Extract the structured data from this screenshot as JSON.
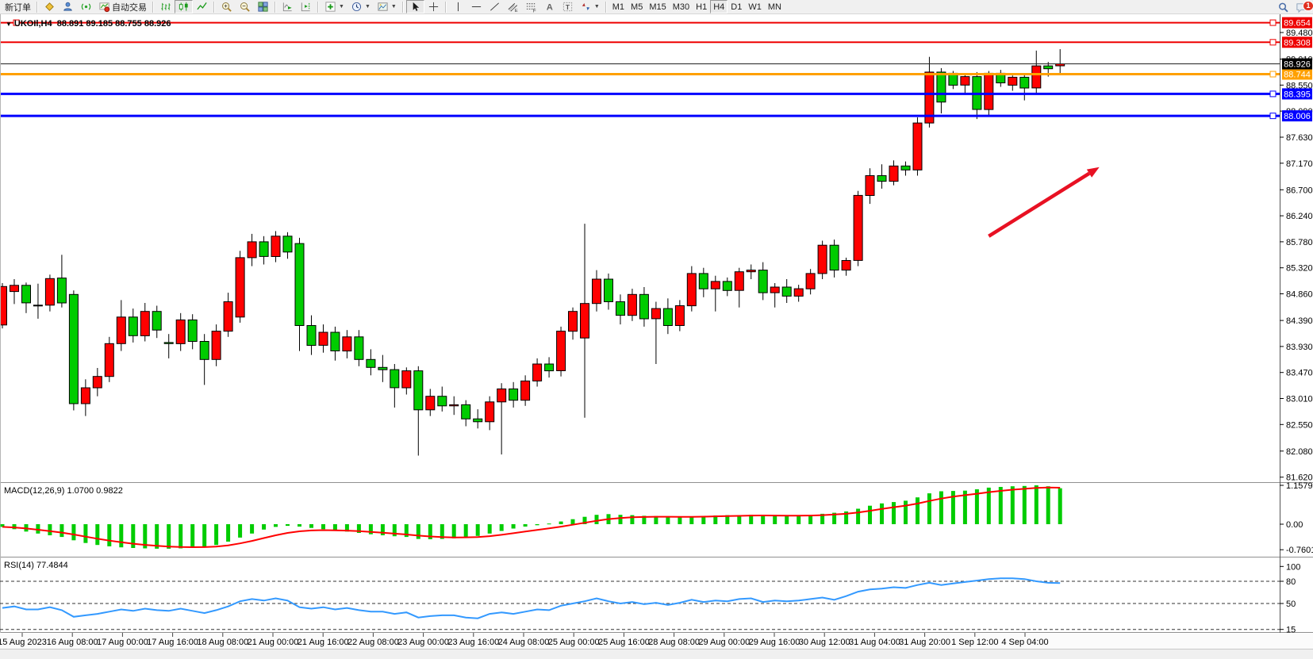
{
  "toolbar": {
    "groups": [
      [
        {
          "name": "new-order-button",
          "label": "新订单"
        }
      ],
      [
        {
          "name": "metaeditor-button",
          "icon": "metaeditor"
        },
        {
          "name": "community-button",
          "icon": "community"
        },
        {
          "name": "signals-button",
          "icon": "signals"
        },
        {
          "name": "autotrading-button",
          "icon": "autotrading",
          "label": "自动交易"
        }
      ],
      [
        {
          "name": "bar-chart-button",
          "icon": "bars"
        },
        {
          "name": "candlestick-chart-button",
          "icon": "candles",
          "pressed": true
        },
        {
          "name": "line-chart-button",
          "icon": "linechart"
        }
      ],
      [
        {
          "name": "zoom-in-button",
          "icon": "zoomin"
        },
        {
          "name": "zoom-out-button",
          "icon": "zoomout"
        },
        {
          "name": "tile-windows-button",
          "icon": "tile"
        }
      ],
      [
        {
          "name": "auto-scroll-button",
          "icon": "autoscroll"
        },
        {
          "name": "chart-shift-button",
          "icon": "chartshift"
        }
      ],
      [
        {
          "name": "indicators-button",
          "icon": "indicators",
          "dropdown": true
        },
        {
          "name": "periods-button",
          "icon": "clock",
          "dropdown": true
        },
        {
          "name": "templates-button",
          "icon": "template",
          "dropdown": true
        }
      ],
      [
        {
          "name": "cursor-button",
          "icon": "cursor",
          "pressed": true
        },
        {
          "name": "crosshair-button",
          "icon": "crosshair"
        }
      ],
      [
        {
          "name": "vertical-line-button",
          "icon": "vline"
        },
        {
          "name": "horizontal-line-button",
          "icon": "hline"
        },
        {
          "name": "trendline-button",
          "icon": "trendline"
        },
        {
          "name": "channel-button",
          "icon": "channel"
        },
        {
          "name": "fibonacci-button",
          "icon": "fibo"
        },
        {
          "name": "text-button",
          "icon": "text-a"
        },
        {
          "name": "label-button",
          "icon": "text-t"
        },
        {
          "name": "arrows-button",
          "icon": "arrows",
          "dropdown": true
        }
      ],
      [
        {
          "name": "tf-m1-button",
          "label": "M1"
        },
        {
          "name": "tf-m5-button",
          "label": "M5"
        },
        {
          "name": "tf-m15-button",
          "label": "M15"
        },
        {
          "name": "tf-m30-button",
          "label": "M30"
        },
        {
          "name": "tf-h1-button",
          "label": "H1"
        },
        {
          "name": "tf-h4-button",
          "label": "H4",
          "pressed": true
        },
        {
          "name": "tf-d1-button",
          "label": "D1"
        },
        {
          "name": "tf-w1-button",
          "label": "W1"
        },
        {
          "name": "tf-mn-button",
          "label": "MN"
        }
      ]
    ],
    "right": [
      {
        "name": "search-button",
        "icon": "search"
      },
      {
        "name": "notifications-button",
        "icon": "chat",
        "badge": "1"
      }
    ],
    "active_timeframe": "H4"
  },
  "chart": {
    "title_symbol": "UKOIl,H4",
    "title_ohlc": "88.891 89.185 88.755 88.926"
  },
  "indicators": {
    "macd_label": "MACD(12,26,9) 1.0700 0.9822",
    "rsi_label": "RSI(14) 77.4844"
  },
  "chart_data": [
    {
      "type": "candlestick",
      "symbol": "UKOIl",
      "timeframe": "H4",
      "ohlc_display": {
        "open": 88.891,
        "high": 89.185,
        "low": 88.755,
        "close": 88.926
      },
      "colors": {
        "up": "#ff0000",
        "down": "#00cc00",
        "wick": "#000000"
      },
      "y_axis": {
        "range": [
          81.45,
          89.85
        ],
        "ticks": [
          "89.480",
          "89.010",
          "88.550",
          "88.090",
          "87.630",
          "87.170",
          "86.700",
          "86.240",
          "85.780",
          "85.320",
          "84.860",
          "84.390",
          "83.930",
          "83.470",
          "83.010",
          "82.550",
          "82.080",
          "81.620"
        ]
      },
      "x_axis": {
        "labels": [
          "15 Aug 2023",
          "16 Aug 08:00",
          "17 Aug 00:00",
          "17 Aug 16:00",
          "18 Aug 08:00",
          "21 Aug 00:00",
          "21 Aug 16:00",
          "22 Aug 08:00",
          "23 Aug 00:00",
          "23 Aug 16:00",
          "24 Aug 08:00",
          "25 Aug 00:00",
          "25 Aug 16:00",
          "28 Aug 08:00",
          "29 Aug 00:00",
          "29 Aug 16:00",
          "30 Aug 12:00",
          "31 Aug 04:00",
          "31 Aug 20:00",
          "1 Sep 12:00",
          "4 Sep 04:00"
        ]
      },
      "hlines": [
        {
          "price": 89.654,
          "label": "89.654",
          "color": "#ee0000",
          "thickness": 2,
          "left_handle": true
        },
        {
          "price": 89.308,
          "label": "89.308",
          "color": "#ee0000",
          "thickness": 2
        },
        {
          "price": 88.744,
          "label": "88.744",
          "color": "#ffa000",
          "thickness": 3
        },
        {
          "price": 88.395,
          "label": "88.395",
          "color": "#0000ff",
          "thickness": 3
        },
        {
          "price": 88.006,
          "label": "88.006",
          "color": "#0000ff",
          "thickness": 3
        }
      ],
      "current_price": {
        "value": 88.926,
        "label": "88.926",
        "color": "#000000"
      },
      "arrow": {
        "from": {
          "index": 83.0,
          "price": 85.88
        },
        "to": {
          "index": 92.3,
          "price": 87.1
        },
        "color": "#e81123"
      },
      "candles": [
        [
          84.31,
          85.05,
          84.25,
          84.99
        ],
        [
          84.9,
          85.12,
          84.68,
          85.01
        ],
        [
          85.01,
          85.06,
          84.52,
          84.7
        ],
        [
          84.66,
          85.04,
          84.42,
          84.66
        ],
        [
          84.66,
          85.2,
          84.55,
          85.13
        ],
        [
          85.14,
          85.55,
          84.62,
          84.7
        ],
        [
          84.85,
          84.92,
          82.8,
          82.92
        ],
        [
          82.92,
          83.35,
          82.7,
          83.2
        ],
        [
          83.2,
          83.55,
          83.05,
          83.4
        ],
        [
          83.4,
          84.1,
          83.3,
          83.98
        ],
        [
          83.98,
          84.75,
          83.85,
          84.45
        ],
        [
          84.45,
          84.6,
          84.0,
          84.12
        ],
        [
          84.12,
          84.7,
          84.02,
          84.55
        ],
        [
          84.55,
          84.65,
          84.08,
          84.22
        ],
        [
          84.0,
          84.15,
          83.72,
          83.98
        ],
        [
          83.98,
          84.52,
          83.85,
          84.4
        ],
        [
          84.4,
          84.5,
          83.88,
          84.02
        ],
        [
          84.02,
          84.15,
          83.25,
          83.7
        ],
        [
          83.7,
          84.32,
          83.58,
          84.2
        ],
        [
          84.2,
          84.88,
          84.1,
          84.72
        ],
        [
          84.45,
          85.62,
          84.35,
          85.5
        ],
        [
          85.5,
          85.92,
          85.35,
          85.78
        ],
        [
          85.78,
          85.88,
          85.38,
          85.52
        ],
        [
          85.52,
          85.97,
          85.42,
          85.88
        ],
        [
          85.88,
          85.95,
          85.48,
          85.6
        ],
        [
          85.75,
          85.85,
          83.85,
          84.3
        ],
        [
          84.3,
          84.48,
          83.78,
          83.95
        ],
        [
          83.95,
          84.32,
          83.82,
          84.18
        ],
        [
          84.18,
          84.28,
          83.68,
          83.85
        ],
        [
          83.85,
          84.22,
          83.72,
          84.1
        ],
        [
          84.1,
          84.22,
          83.58,
          83.7
        ],
        [
          83.7,
          83.88,
          83.42,
          83.56
        ],
        [
          83.56,
          83.78,
          83.3,
          83.52
        ],
        [
          83.52,
          83.62,
          82.85,
          83.2
        ],
        [
          83.2,
          83.56,
          83.08,
          83.5
        ],
        [
          83.5,
          83.58,
          82.0,
          82.81
        ],
        [
          82.81,
          83.18,
          82.7,
          83.05
        ],
        [
          83.05,
          83.22,
          82.78,
          82.88
        ],
        [
          82.88,
          83.05,
          82.72,
          82.9
        ],
        [
          82.9,
          82.98,
          82.52,
          82.65
        ],
        [
          82.65,
          82.82,
          82.48,
          82.6
        ],
        [
          82.6,
          83.05,
          82.45,
          82.95
        ],
        [
          82.95,
          83.28,
          82.02,
          83.18
        ],
        [
          83.18,
          83.3,
          82.85,
          82.98
        ],
        [
          82.98,
          83.42,
          82.88,
          83.32
        ],
        [
          83.32,
          83.72,
          83.22,
          83.62
        ],
        [
          83.62,
          83.74,
          83.38,
          83.5
        ],
        [
          83.5,
          84.28,
          83.4,
          84.2
        ],
        [
          84.2,
          84.62,
          84.05,
          84.55
        ],
        [
          84.08,
          86.1,
          82.67,
          84.69
        ],
        [
          84.69,
          85.28,
          84.55,
          85.12
        ],
        [
          85.12,
          85.22,
          84.58,
          84.72
        ],
        [
          84.72,
          84.85,
          84.32,
          84.48
        ],
        [
          84.48,
          84.95,
          84.38,
          84.85
        ],
        [
          84.85,
          84.98,
          84.28,
          84.42
        ],
        [
          84.42,
          84.72,
          83.62,
          84.6
        ],
        [
          84.6,
          84.78,
          84.15,
          84.3
        ],
        [
          84.3,
          84.75,
          84.2,
          84.65
        ],
        [
          84.65,
          85.35,
          84.55,
          85.22
        ],
        [
          85.22,
          85.32,
          84.8,
          84.95
        ],
        [
          84.95,
          85.18,
          84.55,
          85.08
        ],
        [
          85.08,
          85.15,
          84.82,
          84.92
        ],
        [
          84.92,
          85.32,
          84.62,
          85.25
        ],
        [
          85.25,
          85.38,
          85.12,
          85.28
        ],
        [
          85.28,
          85.42,
          84.75,
          84.88
        ],
        [
          84.88,
          85.05,
          84.62,
          84.98
        ],
        [
          84.98,
          85.12,
          84.7,
          84.82
        ],
        [
          84.82,
          85.02,
          84.72,
          84.95
        ],
        [
          84.95,
          85.3,
          84.85,
          85.22
        ],
        [
          85.22,
          85.8,
          85.12,
          85.72
        ],
        [
          85.72,
          85.82,
          85.15,
          85.28
        ],
        [
          85.28,
          85.5,
          85.18,
          85.45
        ],
        [
          85.45,
          86.68,
          85.35,
          86.6
        ],
        [
          86.6,
          87.08,
          86.45,
          86.95
        ],
        [
          86.95,
          87.15,
          86.72,
          86.85
        ],
        [
          86.85,
          87.22,
          86.78,
          87.12
        ],
        [
          87.12,
          87.2,
          86.95,
          87.05
        ],
        [
          87.05,
          87.98,
          86.95,
          87.88
        ],
        [
          87.88,
          89.05,
          87.8,
          88.78
        ],
        [
          88.78,
          88.85,
          88.05,
          88.25
        ],
        [
          88.76,
          88.8,
          88.48,
          88.55
        ],
        [
          88.55,
          88.74,
          88.4,
          88.7
        ],
        [
          88.7,
          88.78,
          87.95,
          88.12
        ],
        [
          88.12,
          88.8,
          88.02,
          88.76
        ],
        [
          88.76,
          88.82,
          88.52,
          88.59
        ],
        [
          88.55,
          88.72,
          88.45,
          88.69
        ],
        [
          88.69,
          88.74,
          88.28,
          88.5
        ],
        [
          88.5,
          89.16,
          88.4,
          88.89
        ],
        [
          88.89,
          88.96,
          88.7,
          88.84
        ],
        [
          88.891,
          89.185,
          88.755,
          88.926
        ]
      ]
    },
    {
      "type": "bar",
      "name": "MACD",
      "params": "12,26,9",
      "value_current": 1.07,
      "signal_current": 0.9822,
      "colors": {
        "histogram": "#00cc00",
        "signal": "#ff0000"
      },
      "y_axis": {
        "ticks": [
          "1.1579",
          "0.00",
          "-0.7601"
        ],
        "range": [
          -0.7601,
          1.1579
        ]
      },
      "values": [
        -0.08,
        -0.15,
        -0.22,
        -0.28,
        -0.33,
        -0.38,
        -0.48,
        -0.56,
        -0.62,
        -0.66,
        -0.69,
        -0.71,
        -0.72,
        -0.73,
        -0.73,
        -0.72,
        -0.7,
        -0.68,
        -0.62,
        -0.52,
        -0.4,
        -0.28,
        -0.16,
        -0.08,
        -0.05,
        -0.07,
        -0.11,
        -0.15,
        -0.19,
        -0.22,
        -0.26,
        -0.3,
        -0.33,
        -0.36,
        -0.38,
        -0.44,
        -0.45,
        -0.44,
        -0.42,
        -0.39,
        -0.35,
        -0.28,
        -0.2,
        -0.13,
        -0.07,
        -0.03,
        0.02,
        0.08,
        0.15,
        0.22,
        0.28,
        0.3,
        0.28,
        0.27,
        0.25,
        0.24,
        0.22,
        0.21,
        0.22,
        0.24,
        0.26,
        0.27,
        0.27,
        0.28,
        0.27,
        0.25,
        0.24,
        0.25,
        0.27,
        0.31,
        0.34,
        0.38,
        0.46,
        0.55,
        0.62,
        0.66,
        0.7,
        0.8,
        0.92,
        0.98,
        0.99,
        1.0,
        1.04,
        1.09,
        1.11,
        1.13,
        1.14,
        1.1579,
        1.13,
        1.07
      ]
    },
    {
      "type": "line",
      "name": "RSI",
      "params": "14",
      "value_current": 77.4844,
      "colors": {
        "line": "#3399ff",
        "level": "#333333"
      },
      "levels": [
        80,
        50,
        15
      ],
      "y_axis": {
        "ticks": [
          "100",
          "80",
          "50",
          "15"
        ],
        "range": [
          0,
          100
        ]
      },
      "values": [
        44,
        46,
        42,
        42,
        45,
        41,
        32,
        34,
        36,
        39,
        42,
        40,
        43,
        41,
        40,
        43,
        40,
        37,
        41,
        46,
        53,
        56,
        54,
        57,
        54,
        45,
        43,
        45,
        42,
        44,
        41,
        39,
        39,
        36,
        38,
        31,
        33,
        34,
        34,
        31,
        30,
        36,
        38,
        36,
        39,
        42,
        41,
        47,
        50,
        53,
        57,
        53,
        50,
        52,
        49,
        51,
        48,
        51,
        55,
        52,
        54,
        53,
        56,
        57,
        52,
        54,
        53,
        54,
        56,
        58,
        55,
        60,
        66,
        69,
        70,
        72,
        71,
        75,
        78,
        75,
        77,
        79,
        81,
        83,
        84,
        84,
        83,
        80,
        78,
        77.4844
      ]
    }
  ]
}
